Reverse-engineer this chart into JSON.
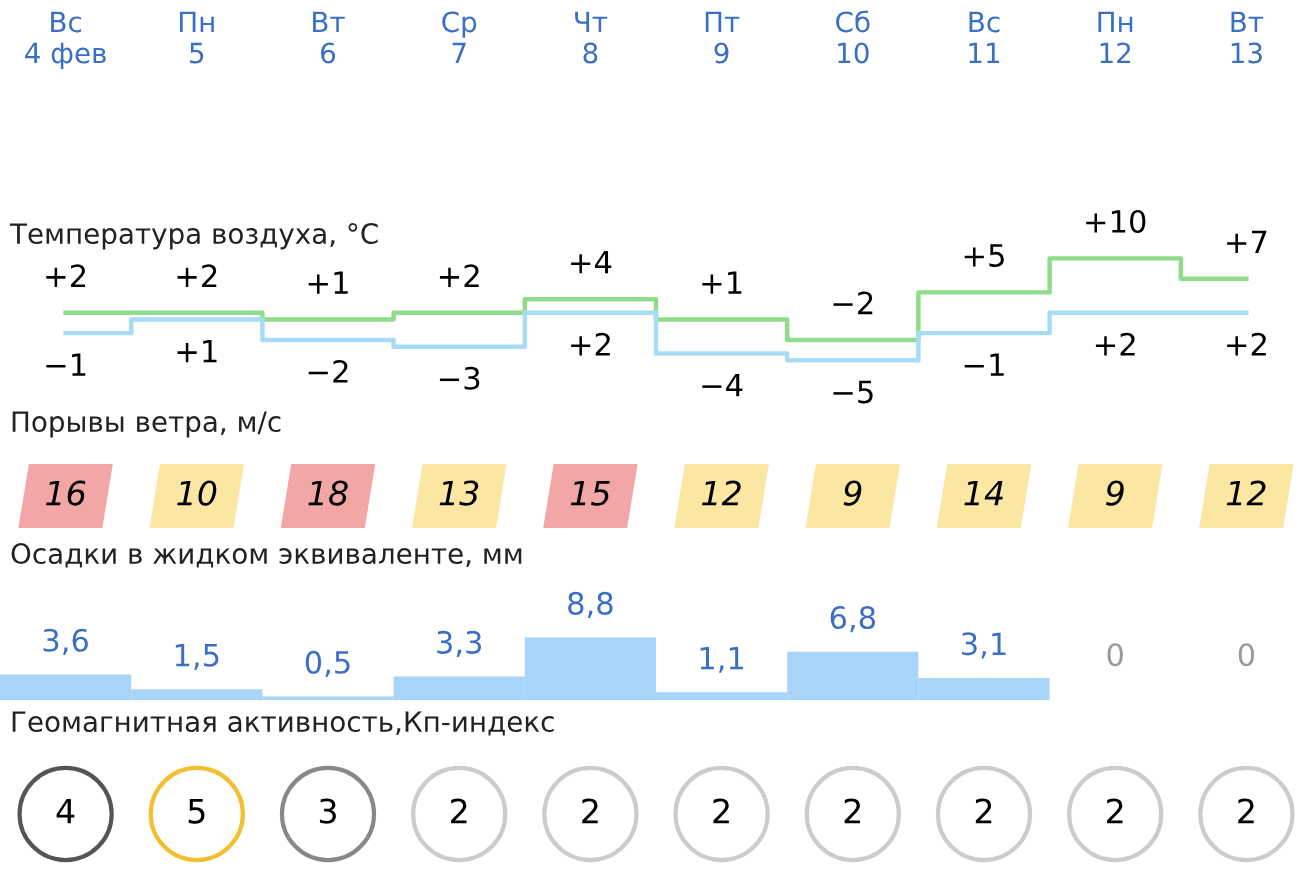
{
  "chart_data": [
    {
      "type": "step",
      "title": "Температура воздуха, °C",
      "categories": [
        "Вс\n4 фев",
        "Пн\n5",
        "Вт\n6",
        "Ср\n7",
        "Чт\n8",
        "Пт\n9",
        "Сб\n10",
        "Вс\n11",
        "Пн\n12",
        "Вт\n13"
      ],
      "series": [
        {
          "color": "#8fdc8a",
          "values": [
            2,
            2,
            1,
            2,
            4,
            1,
            -2,
            5,
            10,
            7
          ],
          "value_labels": [
            "+2",
            "+2",
            "+1",
            "+2",
            "+4",
            "+1",
            "−2",
            "+5",
            "+10",
            "+7"
          ]
        },
        {
          "color": "#a6dcf5",
          "values": [
            -1,
            1,
            -2,
            -3,
            2,
            -4,
            -5,
            -1,
            2,
            2
          ],
          "value_labels": [
            "−1",
            "+1",
            "−2",
            "−3",
            "+2",
            "−4",
            "−5",
            "−1",
            "+2",
            "+2"
          ]
        }
      ]
    },
    {
      "type": "other",
      "title": "Порывы ветра, м/с",
      "data_labels": true,
      "values": [
        16,
        10,
        18,
        13,
        15,
        12,
        9,
        14,
        9,
        12
      ],
      "colors": [
        "#f2a6a6",
        "#fbe6a2",
        "#f2a6a6",
        "#fbe6a2",
        "#f2a6a6",
        "#fbe6a2",
        "#fbe6a2",
        "#fbe6a2",
        "#fbe6a2",
        "#fbe6a2"
      ]
    },
    {
      "type": "bar",
      "title": "Осадки в жидком эквиваленте, мм",
      "categories": [
        null,
        null,
        null,
        null,
        null,
        null,
        null,
        null,
        null,
        null
      ],
      "values": [
        3.6,
        1.5,
        0.5,
        3.3,
        8.8,
        1.1,
        6.8,
        3.1,
        0,
        0
      ],
      "color": "#a8d4f7",
      "value_labels": [
        "3,6",
        "1,5",
        "0,5",
        "3,3",
        "8,8",
        "1,1",
        "6,8",
        "3,1",
        "0",
        "0"
      ]
    },
    {
      "type": "other",
      "title": "Геомагнитная активность,Кп-индекс",
      "data_labels": true,
      "values": [
        4,
        5,
        3,
        2,
        2,
        2,
        2,
        2,
        2,
        2
      ],
      "colors": [
        "#555555",
        "#f0c030",
        "#888888",
        "#cccccc",
        "#cccccc",
        "#cccccc",
        "#cccccc",
        "#cccccc",
        "#cccccc",
        "#cccccc"
      ]
    }
  ]
}
